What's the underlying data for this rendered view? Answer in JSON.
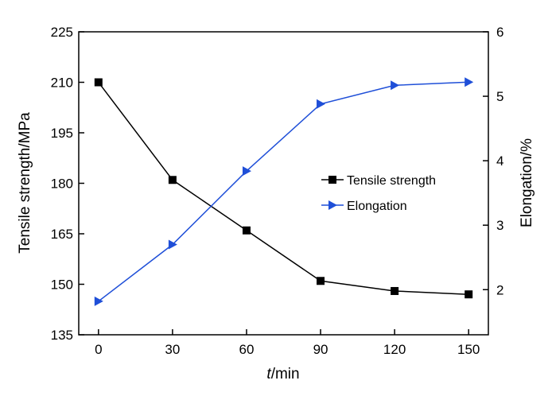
{
  "chart_data": {
    "type": "line",
    "x": [
      0,
      30,
      60,
      90,
      120,
      150
    ],
    "x_ticks": [
      "0",
      "30",
      "60",
      "90",
      "120",
      "150"
    ],
    "xlim": [
      -8,
      158
    ],
    "xlabel_italic": "t",
    "xlabel_rest": "/min",
    "y_left": {
      "label": "Tensile strength/MPa",
      "ticks": [
        "135",
        "150",
        "165",
        "180",
        "195",
        "210",
        "225"
      ],
      "lim": [
        135,
        225
      ]
    },
    "y_right": {
      "label": "Elongation/%",
      "ticks": [
        "2",
        "3",
        "4",
        "5",
        "6"
      ],
      "lim": [
        1.3,
        6
      ]
    },
    "series": [
      {
        "name": "Tensile strength",
        "axis": "left",
        "marker": "square",
        "color": "#000000",
        "values": [
          210,
          181,
          166,
          151,
          148,
          147
        ]
      },
      {
        "name": "Elongation",
        "axis": "right",
        "marker": "triangle-right",
        "color": "#1f4fd8",
        "values": [
          1.82,
          2.7,
          3.84,
          4.88,
          5.17,
          5.22
        ]
      }
    ],
    "legend": {
      "placement": "center-right",
      "entries": [
        "Tensile strength",
        "Elongation"
      ]
    },
    "grid": false
  }
}
